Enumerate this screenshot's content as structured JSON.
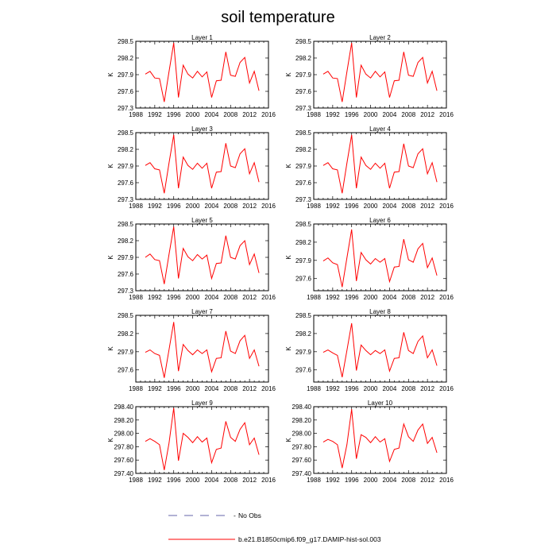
{
  "figure": {
    "title": "soil temperature",
    "legend": [
      {
        "label": "No Obs",
        "color": "#6666aa",
        "dash": "dashed"
      },
      {
        "label": "b.e21.B1850cmip6.f09_g17.DAMIP-hist-sol.003",
        "color": "#ff0000",
        "dash": "solid"
      }
    ]
  },
  "chart_data": [
    {
      "type": "line",
      "title": "Layer 1",
      "ylabel": "K",
      "xlim": [
        1988,
        2016
      ],
      "xticks": [
        1988,
        1992,
        1996,
        2000,
        2004,
        2008,
        2012,
        2016
      ],
      "ylim": [
        297.3,
        298.5
      ],
      "yticks": [
        "297.3",
        "297.6",
        "297.9",
        "298.2",
        "298.5"
      ],
      "series": [
        {
          "name": "b.e21.B1850cmip6.f09_g17.DAMIP-hist-sol.003",
          "color": "#ff0000",
          "x": [
            1990,
            1991,
            1992,
            1993,
            1994,
            1995,
            1996,
            1997,
            1998,
            1999,
            2000,
            2001,
            2002,
            2003,
            2004,
            2005,
            2006,
            2007,
            2008,
            2009,
            2010,
            2011,
            2012,
            2013,
            2014
          ],
          "y": [
            297.91,
            297.96,
            297.84,
            297.83,
            297.41,
            297.95,
            298.47,
            297.49,
            298.07,
            297.91,
            297.84,
            297.96,
            297.86,
            297.95,
            297.49,
            297.79,
            297.8,
            298.31,
            297.89,
            297.87,
            298.12,
            298.21,
            297.75,
            297.96,
            297.61
          ]
        }
      ]
    },
    {
      "type": "line",
      "title": "Layer 2",
      "ylabel": "K",
      "xlim": [
        1988,
        2016
      ],
      "xticks": [
        1988,
        1992,
        1996,
        2000,
        2004,
        2008,
        2012,
        2016
      ],
      "ylim": [
        297.3,
        298.5
      ],
      "yticks": [
        "297.3",
        "297.6",
        "297.9",
        "298.2",
        "298.5"
      ],
      "series": [
        {
          "name": "b.e21.B1850cmip6.f09_g17.DAMIP-hist-sol.003",
          "color": "#ff0000",
          "x": [
            1990,
            1991,
            1992,
            1993,
            1994,
            1995,
            1996,
            1997,
            1998,
            1999,
            2000,
            2001,
            2002,
            2003,
            2004,
            2005,
            2006,
            2007,
            2008,
            2009,
            2010,
            2011,
            2012,
            2013,
            2014
          ],
          "y": [
            297.91,
            297.96,
            297.84,
            297.83,
            297.41,
            297.95,
            298.47,
            297.49,
            298.07,
            297.91,
            297.84,
            297.96,
            297.86,
            297.95,
            297.49,
            297.79,
            297.8,
            298.31,
            297.89,
            297.87,
            298.12,
            298.21,
            297.75,
            297.96,
            297.61
          ]
        }
      ]
    },
    {
      "type": "line",
      "title": "Layer 3",
      "ylabel": "K",
      "xlim": [
        1988,
        2016
      ],
      "xticks": [
        1988,
        1992,
        1996,
        2000,
        2004,
        2008,
        2012,
        2016
      ],
      "ylim": [
        297.3,
        298.5
      ],
      "yticks": [
        "297.3",
        "297.6",
        "297.9",
        "298.2",
        "298.5"
      ],
      "series": [
        {
          "name": "b.e21.B1850cmip6.f09_g17.DAMIP-hist-sol.003",
          "color": "#ff0000",
          "x": [
            1990,
            1991,
            1992,
            1993,
            1994,
            1995,
            1996,
            1997,
            1998,
            1999,
            2000,
            2001,
            2002,
            2003,
            2004,
            2005,
            2006,
            2007,
            2008,
            2009,
            2010,
            2011,
            2012,
            2013,
            2014
          ],
          "y": [
            297.91,
            297.96,
            297.85,
            297.83,
            297.41,
            297.95,
            298.46,
            297.5,
            298.06,
            297.91,
            297.84,
            297.95,
            297.86,
            297.95,
            297.5,
            297.79,
            297.8,
            298.31,
            297.9,
            297.87,
            298.12,
            298.21,
            297.76,
            297.96,
            297.61
          ]
        }
      ]
    },
    {
      "type": "line",
      "title": "Layer 4",
      "ylabel": "K",
      "xlim": [
        1988,
        2016
      ],
      "xticks": [
        1988,
        1992,
        1996,
        2000,
        2004,
        2008,
        2012,
        2016
      ],
      "ylim": [
        297.3,
        298.5
      ],
      "yticks": [
        "297.3",
        "297.6",
        "297.9",
        "298.2",
        "298.5"
      ],
      "series": [
        {
          "name": "b.e21.B1850cmip6.f09_g17.DAMIP-hist-sol.003",
          "color": "#ff0000",
          "x": [
            1990,
            1991,
            1992,
            1993,
            1994,
            1995,
            1996,
            1997,
            1998,
            1999,
            2000,
            2001,
            2002,
            2003,
            2004,
            2005,
            2006,
            2007,
            2008,
            2009,
            2010,
            2011,
            2012,
            2013,
            2014
          ],
          "y": [
            297.91,
            297.96,
            297.85,
            297.83,
            297.41,
            297.95,
            298.46,
            297.5,
            298.06,
            297.91,
            297.84,
            297.95,
            297.86,
            297.95,
            297.5,
            297.79,
            297.8,
            298.3,
            297.9,
            297.87,
            298.12,
            298.21,
            297.76,
            297.96,
            297.61
          ]
        }
      ]
    },
    {
      "type": "line",
      "title": "Layer 5",
      "ylabel": "K",
      "xlim": [
        1988,
        2016
      ],
      "xticks": [
        1988,
        1992,
        1996,
        2000,
        2004,
        2008,
        2012,
        2016
      ],
      "ylim": [
        297.3,
        298.5
      ],
      "yticks": [
        "297.3",
        "297.6",
        "297.9",
        "298.2",
        "298.5"
      ],
      "series": [
        {
          "name": "b.e21.B1850cmip6.f09_g17.DAMIP-hist-sol.003",
          "color": "#ff0000",
          "x": [
            1990,
            1991,
            1992,
            1993,
            1994,
            1995,
            1996,
            1997,
            1998,
            1999,
            2000,
            2001,
            2002,
            2003,
            2004,
            2005,
            2006,
            2007,
            2008,
            2009,
            2010,
            2011,
            2012,
            2013,
            2014
          ],
          "y": [
            297.9,
            297.96,
            297.86,
            297.84,
            297.42,
            297.95,
            298.45,
            297.52,
            298.06,
            297.91,
            297.84,
            297.95,
            297.87,
            297.94,
            297.52,
            297.79,
            297.8,
            298.29,
            297.9,
            297.87,
            298.11,
            298.2,
            297.77,
            297.96,
            297.62
          ]
        }
      ]
    },
    {
      "type": "line",
      "title": "Layer 6",
      "ylabel": "K",
      "xlim": [
        1988,
        2016
      ],
      "xticks": [
        1988,
        1992,
        1996,
        2000,
        2004,
        2008,
        2012,
        2016
      ],
      "ylim": [
        297.4,
        298.5
      ],
      "yticks": [
        "297.6",
        "297.9",
        "298.2",
        "298.5"
      ],
      "series": [
        {
          "name": "b.e21.B1850cmip6.f09_g17.DAMIP-hist-sol.003",
          "color": "#ff0000",
          "x": [
            1990,
            1991,
            1992,
            1993,
            1994,
            1995,
            1996,
            1997,
            1998,
            1999,
            2000,
            2001,
            2002,
            2003,
            2004,
            2005,
            2006,
            2007,
            2008,
            2009,
            2010,
            2011,
            2012,
            2013,
            2014
          ],
          "y": [
            297.89,
            297.94,
            297.86,
            297.83,
            297.46,
            297.94,
            298.41,
            297.56,
            298.03,
            297.91,
            297.84,
            297.93,
            297.87,
            297.93,
            297.55,
            297.79,
            297.8,
            298.25,
            297.91,
            297.87,
            298.09,
            298.18,
            297.78,
            297.94,
            297.65
          ]
        }
      ]
    },
    {
      "type": "line",
      "title": "Layer 7",
      "ylabel": "K",
      "xlim": [
        1988,
        2016
      ],
      "xticks": [
        1988,
        1992,
        1996,
        2000,
        2004,
        2008,
        2012,
        2016
      ],
      "ylim": [
        297.4,
        298.5
      ],
      "yticks": [
        "297.6",
        "297.9",
        "298.2",
        "298.5"
      ],
      "series": [
        {
          "name": "b.e21.B1850cmip6.f09_g17.DAMIP-hist-sol.003",
          "color": "#ff0000",
          "x": [
            1990,
            1991,
            1992,
            1993,
            1994,
            1995,
            1996,
            1997,
            1998,
            1999,
            2000,
            2001,
            2002,
            2003,
            2004,
            2005,
            2006,
            2007,
            2008,
            2009,
            2010,
            2011,
            2012,
            2013,
            2014
          ],
          "y": [
            297.89,
            297.93,
            297.87,
            297.84,
            297.47,
            297.93,
            298.39,
            297.58,
            298.02,
            297.92,
            297.85,
            297.93,
            297.87,
            297.93,
            297.57,
            297.79,
            297.8,
            298.24,
            297.91,
            297.87,
            298.08,
            298.17,
            297.79,
            297.93,
            297.66
          ]
        }
      ]
    },
    {
      "type": "line",
      "title": "Layer 8",
      "ylabel": "K",
      "xlim": [
        1988,
        2016
      ],
      "xticks": [
        1988,
        1992,
        1996,
        2000,
        2004,
        2008,
        2012,
        2016
      ],
      "ylim": [
        297.4,
        298.5
      ],
      "yticks": [
        "297.6",
        "297.9",
        "298.2",
        "298.5"
      ],
      "series": [
        {
          "name": "b.e21.B1850cmip6.f09_g17.DAMIP-hist-sol.003",
          "color": "#ff0000",
          "x": [
            1990,
            1991,
            1992,
            1993,
            1994,
            1995,
            1996,
            1997,
            1998,
            1999,
            2000,
            2001,
            2002,
            2003,
            2004,
            2005,
            2006,
            2007,
            2008,
            2009,
            2010,
            2011,
            2012,
            2013,
            2014
          ],
          "y": [
            297.89,
            297.93,
            297.88,
            297.84,
            297.48,
            297.92,
            298.37,
            297.59,
            298.01,
            297.92,
            297.85,
            297.92,
            297.87,
            297.93,
            297.58,
            297.79,
            297.8,
            298.22,
            297.92,
            297.87,
            298.07,
            298.16,
            297.8,
            297.93,
            297.67
          ]
        }
      ]
    },
    {
      "type": "line",
      "title": "Layer 9",
      "ylabel": "K",
      "xlim": [
        1988,
        2016
      ],
      "xticks": [
        1988,
        1992,
        1996,
        2000,
        2004,
        2008,
        2012,
        2016
      ],
      "ylim": [
        297.4,
        298.4
      ],
      "yticks": [
        "297.40",
        "297.60",
        "297.80",
        "298.00",
        "298.20",
        "298.40"
      ],
      "series": [
        {
          "name": "b.e21.B1850cmip6.f09_g17.DAMIP-hist-sol.003",
          "color": "#ff0000",
          "x": [
            1990,
            1991,
            1992,
            1993,
            1994,
            1995,
            1996,
            1997,
            1998,
            1999,
            2000,
            2001,
            2002,
            2003,
            2004,
            2005,
            2006,
            2007,
            2008,
            2009,
            2010,
            2011,
            2012,
            2013,
            2014
          ],
          "y": [
            297.88,
            297.92,
            297.88,
            297.83,
            297.45,
            297.85,
            298.38,
            297.59,
            298.0,
            297.94,
            297.86,
            297.95,
            297.87,
            297.93,
            297.56,
            297.76,
            297.78,
            298.18,
            297.94,
            297.88,
            298.06,
            298.16,
            297.83,
            297.93,
            297.68
          ]
        }
      ]
    },
    {
      "type": "line",
      "title": "Layer 10",
      "ylabel": "K",
      "xlim": [
        1988,
        2016
      ],
      "xticks": [
        1988,
        1992,
        1996,
        2000,
        2004,
        2008,
        2012,
        2016
      ],
      "ylim": [
        297.4,
        298.4
      ],
      "yticks": [
        "297.40",
        "297.60",
        "297.80",
        "298.00",
        "298.20",
        "298.40"
      ],
      "series": [
        {
          "name": "b.e21.B1850cmip6.f09_g17.DAMIP-hist-sol.003",
          "color": "#ff0000",
          "x": [
            1990,
            1991,
            1992,
            1993,
            1994,
            1995,
            1996,
            1997,
            1998,
            1999,
            2000,
            2001,
            2002,
            2003,
            2004,
            2005,
            2006,
            2007,
            2008,
            2009,
            2010,
            2011,
            2012,
            2013,
            2014
          ],
          "y": [
            297.87,
            297.91,
            297.88,
            297.83,
            297.48,
            297.83,
            298.36,
            297.62,
            297.98,
            297.94,
            297.86,
            297.95,
            297.87,
            297.92,
            297.58,
            297.76,
            297.78,
            298.14,
            297.95,
            297.88,
            298.05,
            298.14,
            297.85,
            297.94,
            297.71
          ]
        }
      ]
    }
  ]
}
